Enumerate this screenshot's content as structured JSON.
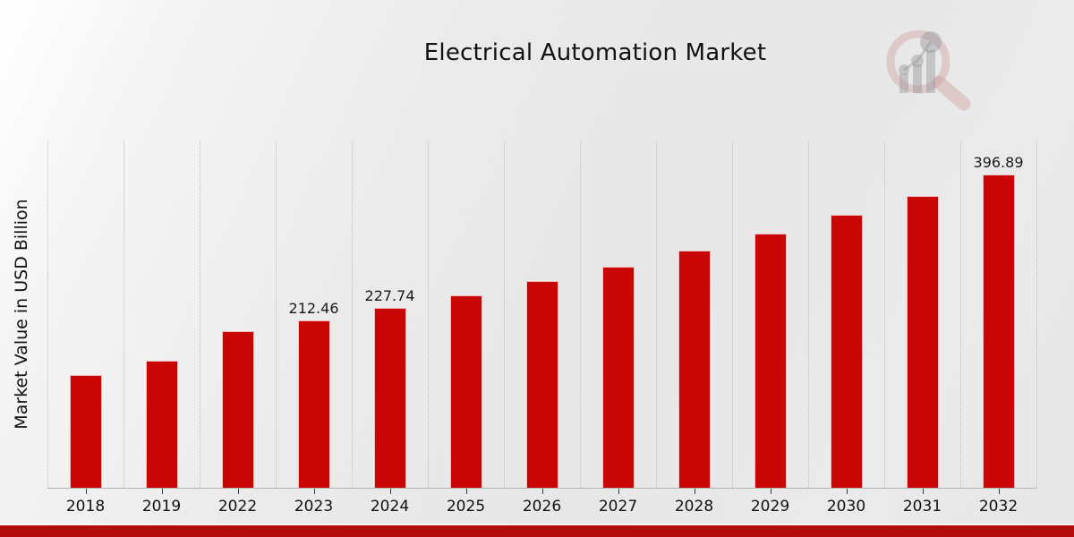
{
  "page": {
    "title": "Electrical Automation Market"
  },
  "colors": {
    "bar": "#c90606",
    "bottom_strip": "#b20c0c",
    "background": "#e8e8e8",
    "gridline": "#bdbdbd",
    "axis_line": "#b3b3b3",
    "text": "#111111"
  },
  "watermark": {
    "icon": "magnifier-bar-chart-logo"
  },
  "chart_data": {
    "type": "bar",
    "title": "Electrical Automation Market",
    "xlabel": "",
    "ylabel": "Market Value in USD Billion",
    "categories": [
      "2018",
      "2019",
      "2022",
      "2023",
      "2024",
      "2025",
      "2026",
      "2027",
      "2028",
      "2029",
      "2030",
      "2031",
      "2032"
    ],
    "values": [
      143.0,
      160.9,
      198.2,
      212.46,
      227.74,
      244.1,
      261.7,
      280.5,
      300.7,
      322.3,
      345.5,
      370.3,
      396.89
    ],
    "bar_labels": [
      "",
      "",
      "",
      "212.46",
      "227.74",
      "",
      "",
      "",
      "",
      "",
      "",
      "",
      "396.89"
    ],
    "ylim": [
      0,
      440
    ],
    "grid": "vertical-dotted",
    "legend": "none",
    "bar_color": "#c90606",
    "units": "USD Billion"
  }
}
